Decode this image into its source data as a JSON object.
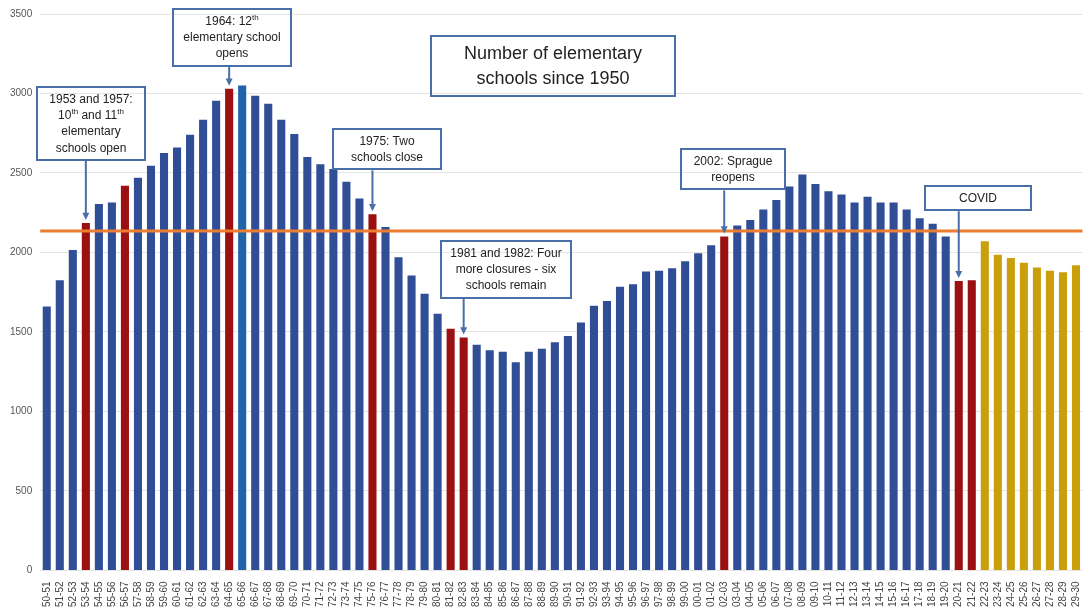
{
  "chart_data": {
    "type": "bar",
    "title": "Number of elementary schools since 1950",
    "categories": [
      "50-51",
      "51-52",
      "52-53",
      "53-54",
      "54-55",
      "55-56",
      "56-57",
      "57-58",
      "58-59",
      "59-60",
      "60-61",
      "61-62",
      "62-63",
      "63-64",
      "64-65",
      "65-66",
      "66-67",
      "67-68",
      "68-69",
      "69-70",
      "70-71",
      "71-72",
      "72-73",
      "73-74",
      "74-75",
      "75-76",
      "76-77",
      "77-78",
      "78-79",
      "79-80",
      "80-81",
      "81-82",
      "82-83",
      "83-84",
      "84-85",
      "85-86",
      "86-87",
      "87-88",
      "88-89",
      "89-90",
      "90-91",
      "91-92",
      "92-93",
      "93-94",
      "94-95",
      "95-96",
      "96-97",
      "97-98",
      "98-99",
      "99-00",
      "00-01",
      "01-02",
      "02-03",
      "03-04",
      "04-05",
      "05-06",
      "06-07",
      "07-08",
      "08-09",
      "09-10",
      "10-11",
      "11-12",
      "12-13",
      "13-14",
      "14-15",
      "15-16",
      "16-17",
      "17-18",
      "18-19",
      "19-20",
      "20-21",
      "21-22",
      "22-23",
      "23-24",
      "24-25",
      "25-26",
      "26-27",
      "27-28",
      "28-29",
      "29-30"
    ],
    "values": [
      1660,
      1825,
      2015,
      2185,
      2305,
      2315,
      2420,
      2470,
      2545,
      2625,
      2660,
      2740,
      2835,
      2955,
      3030,
      3050,
      2985,
      2935,
      2835,
      2745,
      2600,
      2555,
      2525,
      2445,
      2340,
      2240,
      2160,
      1970,
      1855,
      1740,
      1615,
      1520,
      1465,
      1420,
      1385,
      1375,
      1310,
      1375,
      1395,
      1435,
      1475,
      1560,
      1665,
      1695,
      1785,
      1800,
      1880,
      1885,
      1900,
      1945,
      1995,
      2045,
      2100,
      2170,
      2205,
      2270,
      2330,
      2415,
      2490,
      2430,
      2385,
      2365,
      2315,
      2350,
      2315,
      2315,
      2270,
      2215,
      2180,
      2100,
      1820,
      1825,
      2070,
      1985,
      1965,
      1935,
      1905,
      1885,
      1875,
      1920
    ],
    "colors": [
      "#2f4e96",
      "#2f4e96",
      "#2f4e96",
      "#9b1010",
      "#2f4e96",
      "#2f4e96",
      "#9b1010",
      "#2f4e96",
      "#2f4e96",
      "#2f4e96",
      "#2f4e96",
      "#2f4e96",
      "#2f4e96",
      "#2f4e96",
      "#9b1010",
      "#1f64a8",
      "#2f4e96",
      "#2f4e96",
      "#2f4e96",
      "#2f4e96",
      "#2f4e96",
      "#2f4e96",
      "#2f4e96",
      "#2f4e96",
      "#2f4e96",
      "#9b1010",
      "#2f4e96",
      "#2f4e96",
      "#2f4e96",
      "#2f4e96",
      "#2f4e96",
      "#9b1010",
      "#9b1010",
      "#2f4e96",
      "#2f4e96",
      "#2f4e96",
      "#2f4e96",
      "#2f4e96",
      "#2f4e96",
      "#2f4e96",
      "#2f4e96",
      "#2f4e96",
      "#2f4e96",
      "#2f4e96",
      "#2f4e96",
      "#2f4e96",
      "#2f4e96",
      "#2f4e96",
      "#2f4e96",
      "#2f4e96",
      "#2f4e96",
      "#2f4e96",
      "#9b1010",
      "#2f4e96",
      "#2f4e96",
      "#2f4e96",
      "#2f4e96",
      "#2f4e96",
      "#2f4e96",
      "#2f4e96",
      "#2f4e96",
      "#2f4e96",
      "#2f4e96",
      "#2f4e96",
      "#2f4e96",
      "#2f4e96",
      "#2f4e96",
      "#2f4e96",
      "#2f4e96",
      "#2f4e96",
      "#9b1010",
      "#9b1010",
      "#c9a00c",
      "#c9a00c",
      "#c9a00c",
      "#c9a00c",
      "#c9a00c",
      "#c9a00c",
      "#c9a00c",
      "#c9a00c"
    ],
    "ylim": [
      0,
      3500
    ],
    "yticks": [
      0,
      500,
      1000,
      1500,
      2000,
      2500,
      3000,
      3500
    ],
    "grid": "y",
    "legend": false,
    "ref_lines": [
      {
        "axis": "y",
        "value": 2135,
        "color": "#ed7d31"
      }
    ],
    "annotations": [
      {
        "text": "1953 and 1957: 10$^{th}$ and 11$^{th}$ elementary schools open",
        "x": "53-54",
        "y": 2185
      },
      {
        "text": "1964: 12$^{th}$ elementary school opens",
        "x": "64-65",
        "y": 3030
      },
      {
        "text": "1975: Two schools close",
        "x": "75-76",
        "y": 2240
      },
      {
        "text": "1981 and 1982: Four more closures - six schools remain",
        "x": "82-83",
        "y": 1465
      },
      {
        "text": "2002: Sprague reopens",
        "x": "02-03",
        "y": 2100
      },
      {
        "text": "COVID",
        "x": "20-21",
        "y": 1820
      }
    ]
  }
}
